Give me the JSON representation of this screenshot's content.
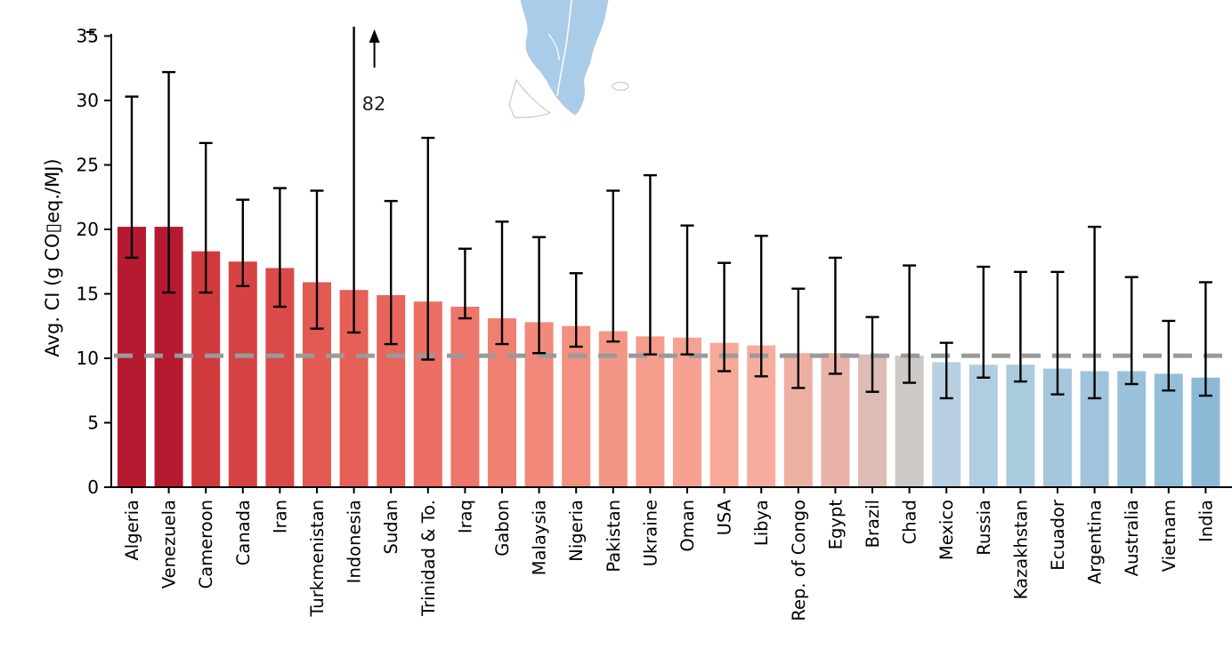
{
  "figure": {
    "background": "#ffffff",
    "map_fragment": {
      "description": "partial map fragment with light blue landmass",
      "land_color": "#a9cce9",
      "outline_color": "#c9c9c9"
    }
  },
  "chart_data": {
    "type": "bar",
    "title": "",
    "xlabel": "",
    "ylabel": "Avg. CI (g CO▯eq./MJ)",
    "ylim": [
      0,
      35
    ],
    "yticks": [
      0,
      5,
      10,
      15,
      20,
      25,
      30,
      35
    ],
    "grid": false,
    "legend": "none",
    "reference_line": {
      "value": 10.2,
      "style": "dashed",
      "color": "#9a9a9a"
    },
    "categories": [
      "Algeria",
      "Venezuela",
      "Cameroon",
      "Canada",
      "Iran",
      "Turkmenistan",
      "Indonesia",
      "Sudan",
      "Trinidad & To.",
      "Iraq",
      "Gabon",
      "Malaysia",
      "Nigeria",
      "Pakistan",
      "Ukraine",
      "Oman",
      "USA",
      "Libya",
      "Rep. of Congo",
      "Egypt",
      "Brazil",
      "Chad",
      "Mexico",
      "Russia",
      "Kazakhstan",
      "Ecuador",
      "Argentina",
      "Australia",
      "Vietnam",
      "India"
    ],
    "series": [
      {
        "name": "Avg. CI",
        "values": [
          20.2,
          20.2,
          18.3,
          17.5,
          17.0,
          15.9,
          15.3,
          14.9,
          14.4,
          14.0,
          13.1,
          12.8,
          12.5,
          12.1,
          11.7,
          11.6,
          11.2,
          11.0,
          10.4,
          10.4,
          10.3,
          10.2,
          9.7,
          9.5,
          9.5,
          9.2,
          9.0,
          9.0,
          8.8,
          8.5
        ]
      }
    ],
    "error_low": [
      17.8,
      15.1,
      15.1,
      15.6,
      14.0,
      12.3,
      12.0,
      11.1,
      9.9,
      13.1,
      11.1,
      10.4,
      10.9,
      11.3,
      10.3,
      10.3,
      9.0,
      8.6,
      7.7,
      8.8,
      7.4,
      8.1,
      6.9,
      8.5,
      8.2,
      7.2,
      6.9,
      8.0,
      7.5,
      7.1
    ],
    "error_high": [
      30.3,
      32.2,
      26.7,
      22.3,
      23.2,
      23.0,
      82.0,
      22.2,
      27.1,
      18.5,
      20.6,
      19.4,
      16.6,
      23.0,
      24.2,
      20.3,
      17.4,
      19.5,
      15.4,
      17.8,
      13.2,
      17.2,
      11.2,
      17.1,
      16.7,
      16.7,
      20.2,
      16.3,
      12.9,
      15.9
    ],
    "bar_colors": [
      "#b51a30",
      "#b51a30",
      "#d03a3d",
      "#d64345",
      "#da4a49",
      "#e25a52",
      "#e66057",
      "#e8655b",
      "#ec6f63",
      "#ee766a",
      "#f08172",
      "#f2897a",
      "#f39080",
      "#f49685",
      "#f59c8c",
      "#f6a191",
      "#f7a897",
      "#f7ad9d",
      "#eeb0a3",
      "#e9b3a9",
      "#dcbcb4",
      "#cdc9c6",
      "#b8d0e2",
      "#b0cde1",
      "#aacade",
      "#a4c7dd",
      "#9fc4db",
      "#9ac2da",
      "#93bed8",
      "#8cbad6"
    ],
    "annotations": [
      {
        "target": "Indonesia",
        "text": "82",
        "arrow": "up"
      }
    ]
  }
}
